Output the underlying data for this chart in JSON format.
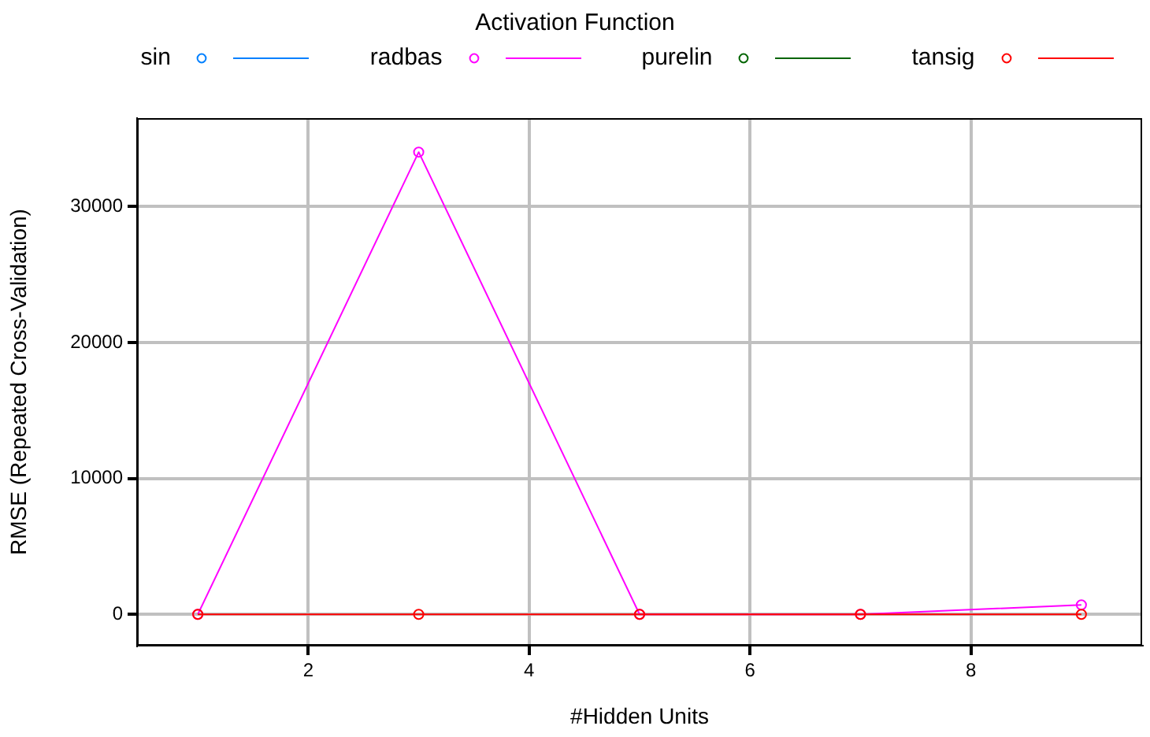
{
  "chart_data": {
    "type": "line",
    "xlabel": "#Hidden Units",
    "ylabel": "RMSE (Repeated Cross-Validation)",
    "legend_title": "Activation Function",
    "legend": "top",
    "grid": true,
    "marker": "circle",
    "line_style": "solid",
    "x": [
      1,
      3,
      5,
      7,
      9
    ],
    "xlim": [
      0.45,
      9.55
    ],
    "xticks": [
      2,
      4,
      6,
      8
    ],
    "ylim": [
      -2300,
      36500
    ],
    "yticks": [
      0,
      10000,
      20000,
      30000
    ],
    "series": [
      {
        "name": "sin",
        "color": "#0080ff",
        "values": [
          null,
          null,
          null,
          null,
          null
        ]
      },
      {
        "name": "radbas",
        "color": "#ff00ff",
        "values": [
          0,
          34000,
          0,
          0,
          700
        ]
      },
      {
        "name": "purelin",
        "color": "#006400",
        "values": [
          null,
          null,
          null,
          null,
          null
        ]
      },
      {
        "name": "tansig",
        "color": "#ff0000",
        "values": [
          0,
          0,
          0,
          0,
          0
        ]
      }
    ]
  }
}
